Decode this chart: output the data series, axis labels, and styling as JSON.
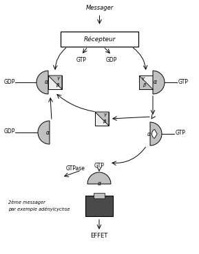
{
  "bg_color": "#ffffff",
  "light_gray": "#c0c0c0",
  "dark_gray": "#4a4a4a",
  "line_color": "#000000",
  "messager": "Messager",
  "recepteur": "Récepteur",
  "effet": "EFFET",
  "gtp": "GTP",
  "gdp": "GDP",
  "gtpase": "GTPase",
  "alpha": "α",
  "beta": "β",
  "gamma": "γ",
  "messager2": "2ème messager\npar exemple adénylcychse"
}
